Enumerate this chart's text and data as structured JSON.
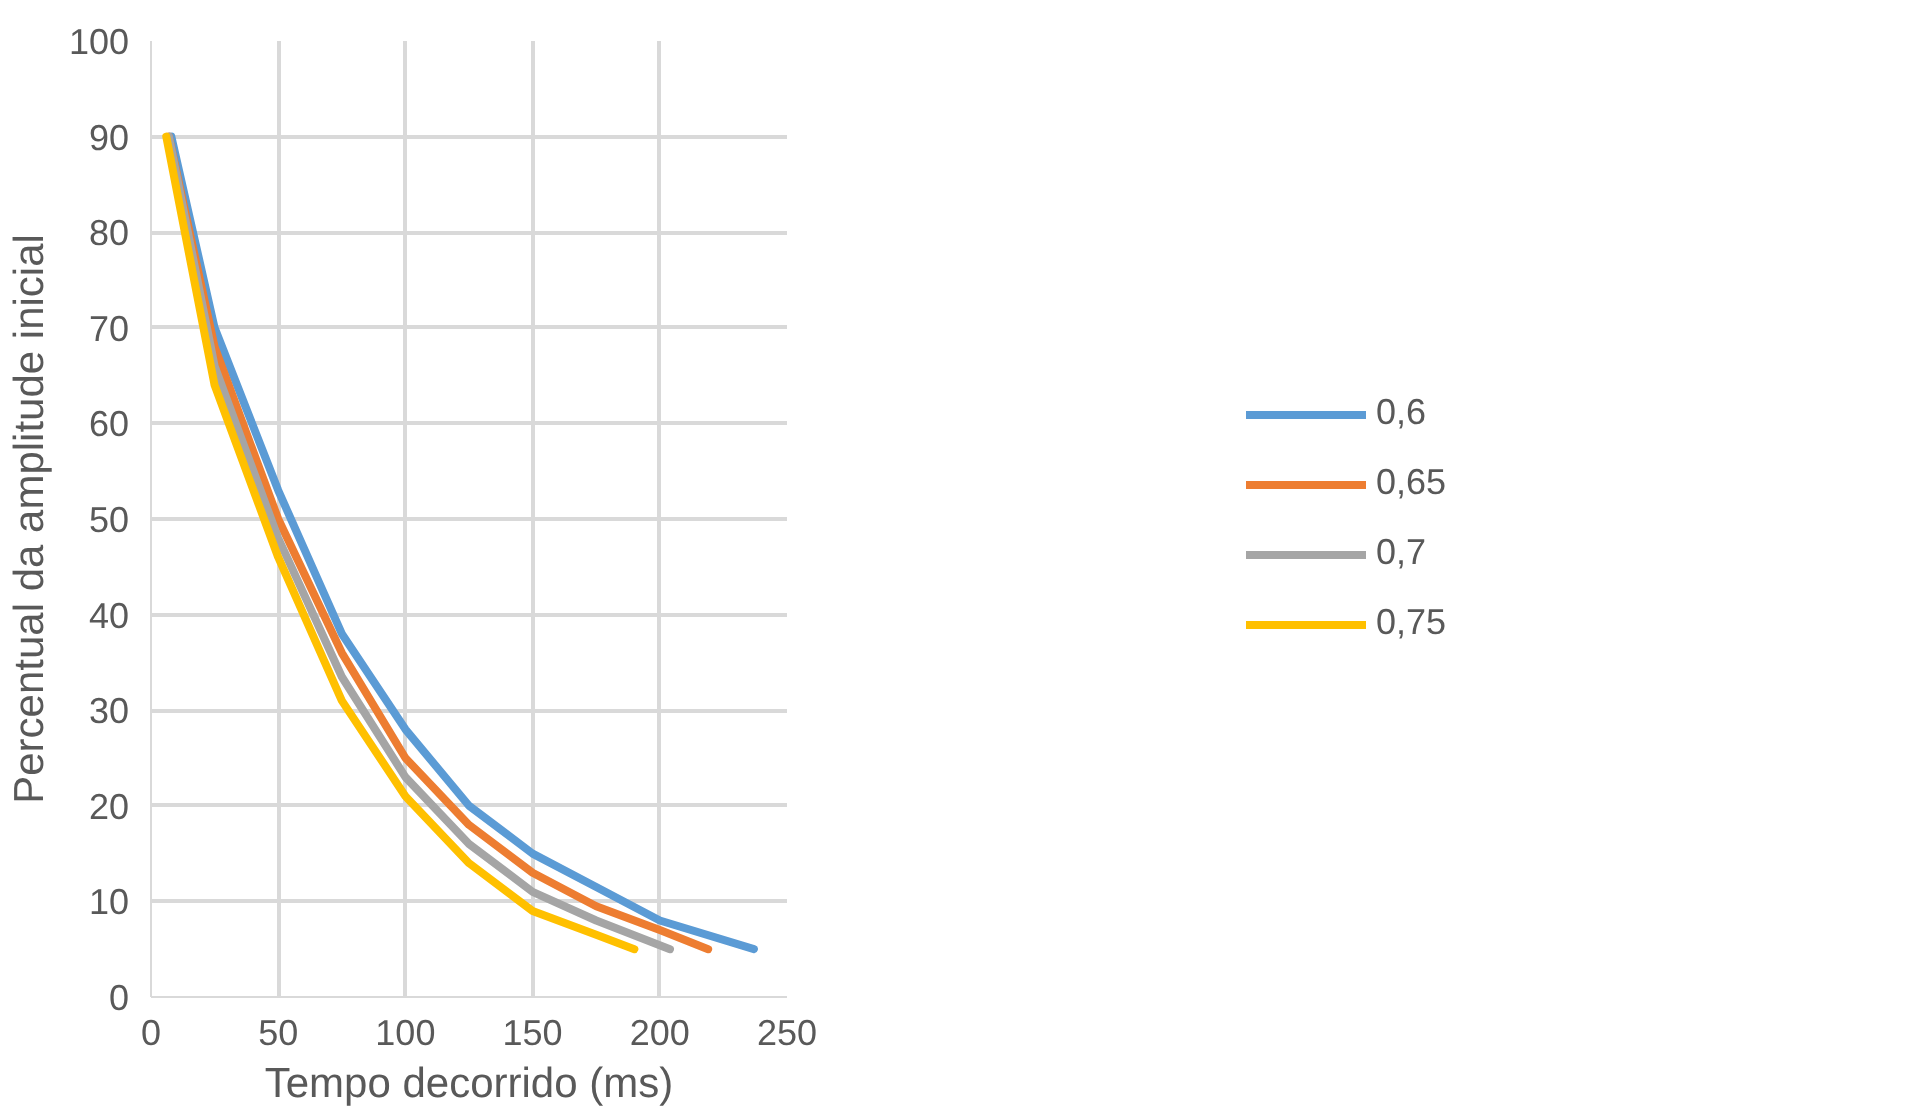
{
  "chart_data": {
    "type": "line",
    "xlabel": "Tempo decorrido (ms)",
    "ylabel": "Percentual da amplitude inicial",
    "xlim": [
      0,
      250
    ],
    "ylim": [
      0,
      100
    ],
    "xticks": [
      0,
      50,
      100,
      150,
      200,
      250
    ],
    "yticks": [
      0,
      10,
      20,
      30,
      40,
      50,
      60,
      70,
      80,
      90,
      100
    ],
    "grid": true,
    "legend": "right",
    "line_style": "solid",
    "series": [
      {
        "name": "0,6",
        "color": "#5b9bd5",
        "x": [
          8,
          25,
          50,
          75,
          100,
          125,
          150,
          175,
          200,
          237
        ],
        "values": [
          90,
          70,
          53,
          38,
          28,
          20,
          15,
          11.5,
          8,
          5
        ]
      },
      {
        "name": "0,65",
        "color": "#ed7d31",
        "x": [
          7,
          25,
          50,
          75,
          100,
          125,
          150,
          175,
          200,
          219
        ],
        "values": [
          90,
          68,
          50,
          36,
          25,
          18,
          13,
          9.5,
          7,
          5
        ]
      },
      {
        "name": "0,7",
        "color": "#a5a5a5",
        "x": [
          7,
          25,
          50,
          75,
          100,
          125,
          150,
          175,
          204
        ],
        "values": [
          90,
          66,
          48,
          33.5,
          23,
          16,
          11,
          8,
          5
        ]
      },
      {
        "name": "0,75",
        "color": "#ffc000",
        "x": [
          6,
          25,
          50,
          75,
          100,
          125,
          150,
          175,
          190
        ],
        "values": [
          90,
          64,
          46,
          31,
          21,
          14,
          9,
          6.5,
          5
        ]
      }
    ]
  }
}
